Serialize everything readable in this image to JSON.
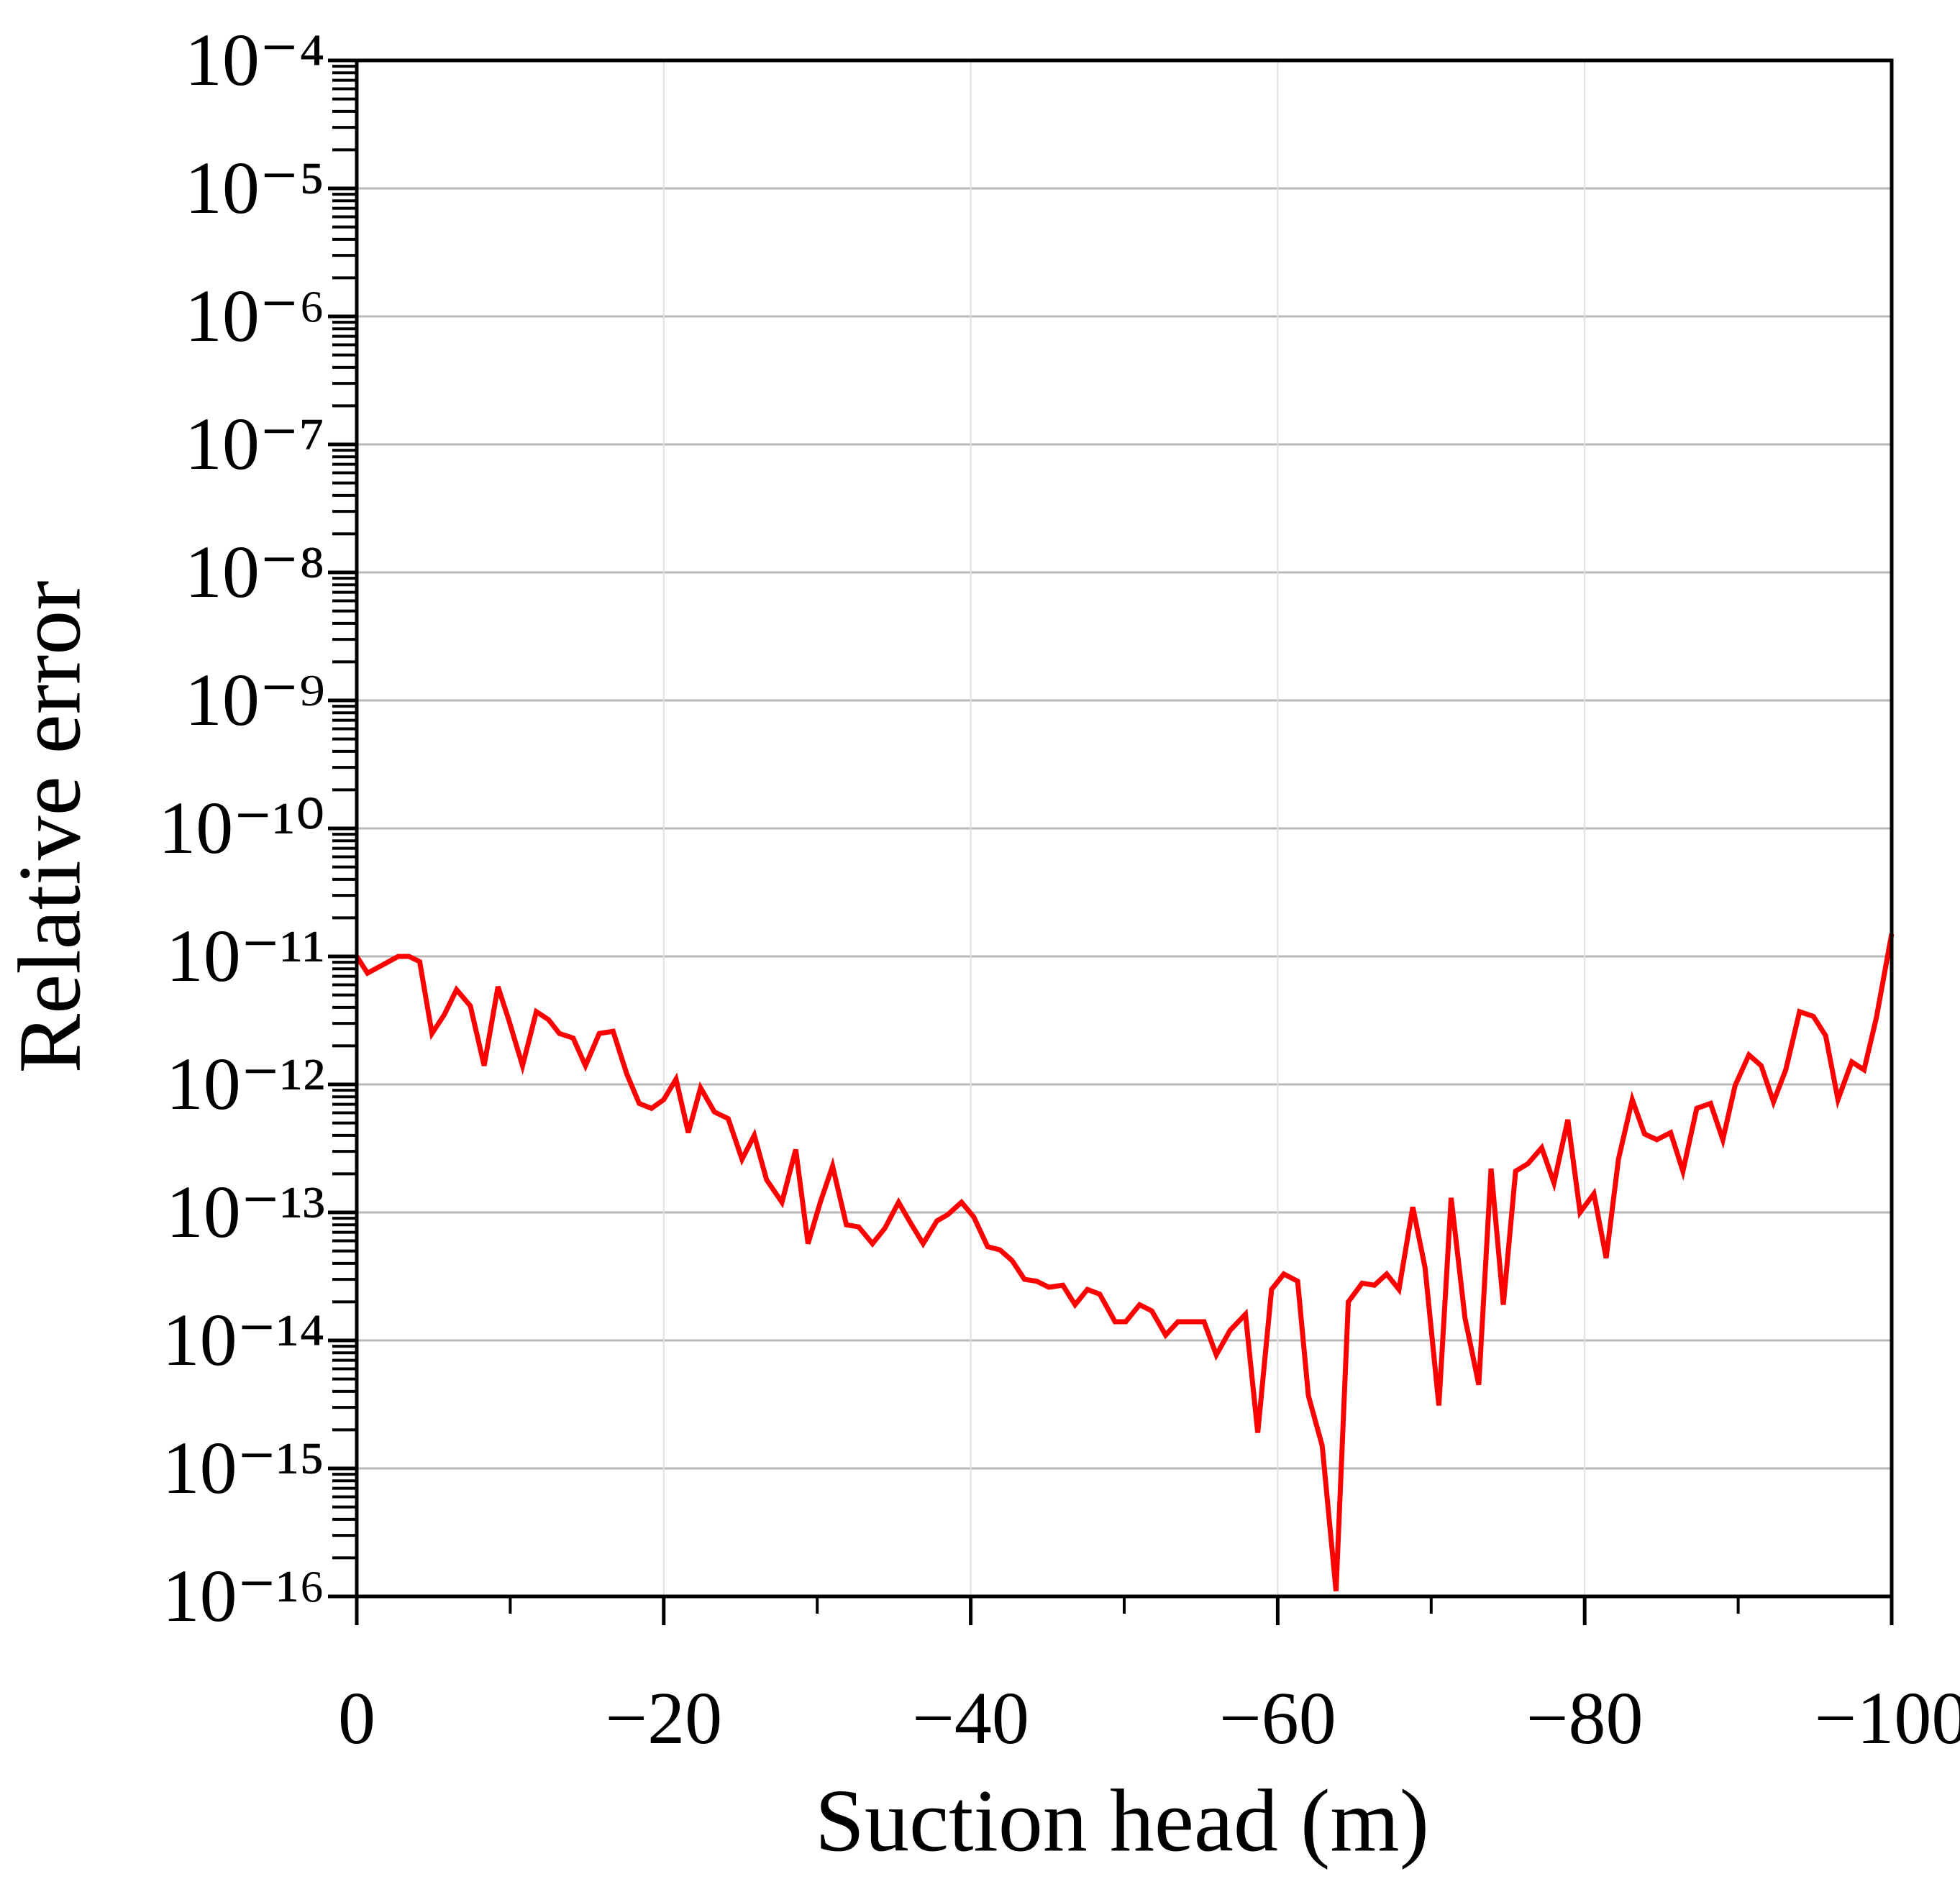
{
  "chart_data": {
    "type": "line",
    "xlabel": "Suction head (m)",
    "ylabel": "Relative error",
    "xlim": [
      0,
      -100
    ],
    "xticks": [
      0,
      {
        "value": -20,
        "label": "−20"
      },
      {
        "value": -40,
        "label": "−40"
      },
      {
        "value": -60,
        "label": "−60"
      },
      {
        "value": -80,
        "label": "−80"
      },
      {
        "value": -100,
        "label": "−100"
      }
    ],
    "ylim": [
      1e-16,
      0.0001
    ],
    "yscale": "log",
    "yticks": [
      {
        "value": 1e-16,
        "label": "10⁻¹⁶"
      },
      {
        "value": 1e-15,
        "label": "10⁻¹⁵"
      },
      {
        "value": 1e-14,
        "label": "10⁻¹⁴"
      },
      {
        "value": 1e-13,
        "label": "10⁻¹³"
      },
      {
        "value": 1e-12,
        "label": "10⁻¹²"
      },
      {
        "value": 1e-11,
        "label": "10⁻¹¹"
      },
      {
        "value": 1e-10,
        "label": "10⁻¹⁰"
      },
      {
        "value": 1e-09,
        "label": "10⁻⁹"
      },
      {
        "value": 1e-08,
        "label": "10⁻⁸"
      },
      {
        "value": 1e-07,
        "label": "10⁻⁷"
      },
      {
        "value": 1e-06,
        "label": "10⁻⁶"
      },
      {
        "value": 1e-05,
        "label": "10⁻⁵"
      },
      {
        "value": 0.0001,
        "label": "10⁻⁴"
      }
    ],
    "grid": true,
    "color": "#ff0000",
    "x": [
      0,
      -0.7,
      -2.7,
      -3.4,
      -4.1,
      -4.9,
      -5.7,
      -6.5,
      -7.4,
      -8.3,
      -9.2,
      -9.9,
      -10.8,
      -11.7,
      -12.5,
      -13.2,
      -14.1,
      -14.9,
      -15.8,
      -16.7,
      -17.6,
      -18.4,
      -19.2,
      -20.0,
      -20.8,
      -21.6,
      -22.4,
      -23.3,
      -24.2,
      -25.1,
      -25.9,
      -26.7,
      -27.7,
      -28.6,
      -29.4,
      -30.2,
      -31.0,
      -31.9,
      -32.7,
      -33.6,
      -34.4,
      -35.3,
      -36.1,
      -36.9,
      -37.8,
      -38.5,
      -39.4,
      -40.2,
      -41.1,
      -41.9,
      -42.7,
      -43.5,
      -44.3,
      -45.1,
      -46.0,
      -46.8,
      -47.6,
      -48.4,
      -49.4,
      -50.1,
      -51.0,
      -51.8,
      -52.7,
      -53.5,
      -54.3,
      -55.2,
      -56.0,
      -56.9,
      -57.9,
      -58.7,
      -59.6,
      -60.4,
      -61.3,
      -62.0,
      -62.9,
      -63.8,
      -64.6,
      -65.5,
      -66.3,
      -67.1,
      -67.9,
      -68.8,
      -69.6,
      -70.5,
      -71.3,
      -72.2,
      -73.1,
      -73.9,
      -74.7,
      -75.5,
      -76.3,
      -77.2,
      -78.0,
      -78.9,
      -79.7,
      -80.6,
      -81.4,
      -82.2,
      -83.1,
      -83.9,
      -84.7,
      -85.6,
      -86.4,
      -87.3,
      -88.2,
      -89.0,
      -89.8,
      -90.7,
      -91.5,
      -92.3,
      -93.1,
      -94.0,
      -94.9,
      -95.7,
      -96.5,
      -97.4,
      -98.2,
      -99.0,
      -100.0
    ],
    "values": [
      1e-11,
      7.4e-12,
      1e-11,
      1e-11,
      9.1e-12,
      2.5e-12,
      3.5e-12,
      5.5e-12,
      4.1e-12,
      1.4e-12,
      5.8e-12,
      3.2e-12,
      1.4e-12,
      3.7e-12,
      3.2e-12,
      2.5e-12,
      2.3e-12,
      1.4e-12,
      2.5e-12,
      2.6e-12,
      1.2e-12,
      7.1e-13,
      6.5e-13,
      7.6e-13,
      1.1e-12,
      4.2e-13,
      9.4e-13,
      6.1e-13,
      5.4e-13,
      2.6e-13,
      4e-13,
      1.8e-13,
      1.2e-13,
      3.1e-13,
      5.7e-14,
      1.2e-13,
      2.3e-13,
      8e-14,
      7.7e-14,
      5.7e-14,
      7.5e-14,
      1.2e-13,
      8.2e-14,
      5.7e-14,
      8.6e-14,
      9.6e-14,
      1.2e-13,
      9.2e-14,
      5.4e-14,
      5.1e-14,
      4.2e-14,
      3e-14,
      2.9e-14,
      2.6e-14,
      2.7e-14,
      1.9e-14,
      2.5e-14,
      2.3e-14,
      1.4e-14,
      1.4e-14,
      1.9e-14,
      1.7e-14,
      1.1e-14,
      1.4e-14,
      1.4e-14,
      1.4e-14,
      7.7e-15,
      1.2e-14,
      1.6e-14,
      1.9e-15,
      2.5e-14,
      3.3e-14,
      2.9e-14,
      3.7e-15,
      1.5e-15,
      1.1e-16,
      2e-14,
      2.8e-14,
      2.7e-14,
      3.3e-14,
      2.5e-14,
      1.1e-13,
      3.7e-14,
      3.1e-15,
      1.3e-13,
      1.5e-14,
      4.5e-15,
      2.2e-13,
      1.9e-14,
      2.1e-13,
      2.4e-13,
      3.2e-13,
      1.7e-13,
      5.3e-13,
      1e-13,
      1.4e-13,
      4.4e-14,
      2.6e-13,
      7.6e-13,
      4.1e-13,
      3.7e-13,
      4.2e-13,
      2.1e-13,
      6.5e-13,
      7.1e-13,
      3.7e-13,
      9.8e-13,
      1.7e-12,
      1.4e-12,
      7.3e-13,
      1.3e-12,
      3.7e-12,
      3.4e-12,
      2.4e-12,
      7.6e-13,
      1.5e-12,
      1.3e-12,
      3.3e-12,
      1.5e-11
    ]
  }
}
